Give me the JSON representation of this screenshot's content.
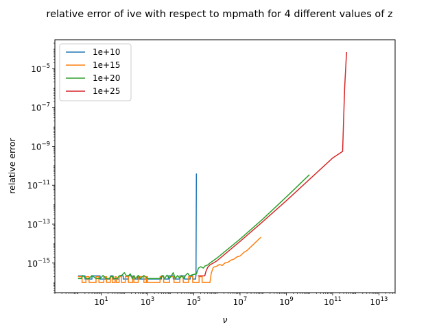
{
  "chart_data": {
    "type": "line",
    "title": "relative error of ive with respect to mpmath for 4 different values of z",
    "xlabel": "ν",
    "ylabel": "relative error",
    "xscale": "log",
    "yscale": "log",
    "xlim": [
      0.1,
      50000000000000.0
    ],
    "ylim": [
      3e-17,
      0.0003
    ],
    "grid": false,
    "legend_position": "top-left",
    "x_ticks": [
      {
        "base": "10",
        "exp": "1",
        "value": 10
      },
      {
        "base": "10",
        "exp": "3",
        "value": 1000
      },
      {
        "base": "10",
        "exp": "5",
        "value": 100000
      },
      {
        "base": "10",
        "exp": "7",
        "value": 10000000
      },
      {
        "base": "10",
        "exp": "9",
        "value": 1000000000
      },
      {
        "base": "10",
        "exp": "11",
        "value": 100000000000
      },
      {
        "base": "10",
        "exp": "13",
        "value": 10000000000000
      }
    ],
    "y_ticks": [
      {
        "base": "10",
        "exp": "−15",
        "value": 1e-15
      },
      {
        "base": "10",
        "exp": "−13",
        "value": 1e-13
      },
      {
        "base": "10",
        "exp": "−11",
        "value": 1e-11
      },
      {
        "base": "10",
        "exp": "−9",
        "value": 1e-09
      },
      {
        "base": "10",
        "exp": "−7",
        "value": 1e-07
      },
      {
        "base": "10",
        "exp": "−5",
        "value": 1e-05
      }
    ],
    "series": [
      {
        "name": "1e+10",
        "color": "#1f77b4",
        "points": [
          [
            1,
            2.2e-16
          ],
          [
            2,
            2.2e-16
          ],
          [
            2,
            1.5e-16
          ],
          [
            4,
            1.5e-16
          ],
          [
            4,
            2.2e-16
          ],
          [
            9,
            2.2e-16
          ],
          [
            9,
            1.5e-16
          ],
          [
            25,
            1.5e-16
          ],
          [
            25,
            2.2e-16
          ],
          [
            33,
            2.2e-16
          ],
          [
            33,
            1.5e-16
          ],
          [
            60,
            1.5e-16
          ],
          [
            60,
            2.2e-16
          ],
          [
            90,
            2.2e-16
          ],
          [
            90,
            1.5e-16
          ],
          [
            150,
            1.5e-16
          ],
          [
            150,
            2.2e-16
          ],
          [
            220,
            2.2e-16
          ],
          [
            220,
            1.5e-16
          ],
          [
            380,
            1.5e-16
          ],
          [
            380,
            2.2e-16
          ],
          [
            430,
            2.2e-16
          ],
          [
            430,
            1.5e-16
          ],
          [
            4000,
            1.5e-16
          ],
          [
            4000,
            2.2e-16
          ],
          [
            5000,
            2.2e-16
          ],
          [
            5000,
            1.5e-16
          ],
          [
            8000,
            1.5e-16
          ],
          [
            8000,
            2.2e-16
          ],
          [
            13000,
            2.2e-16
          ],
          [
            13000,
            1.5e-16
          ],
          [
            25000,
            1.5e-16
          ],
          [
            25000,
            2.2e-16
          ],
          [
            40000,
            2.2e-16
          ],
          [
            40000,
            1.5e-16
          ],
          [
            70000,
            1.5e-16
          ],
          [
            70000,
            2.2e-16
          ],
          [
            90000,
            2.2e-16
          ],
          [
            90000,
            1.5e-16
          ],
          [
            120000,
            1.5e-16
          ],
          [
            125000,
            2.5e-16
          ],
          [
            130000,
            4e-11
          ]
        ]
      },
      {
        "name": "1e+15",
        "color": "#ff7f0e",
        "points": [
          [
            1,
            2e-16
          ],
          [
            1.5,
            2e-16
          ],
          [
            1.5,
            1e-16
          ],
          [
            2.2,
            1e-16
          ],
          [
            2.2,
            2e-16
          ],
          [
            3,
            2e-16
          ],
          [
            3,
            1e-16
          ],
          [
            6,
            1e-16
          ],
          [
            6,
            2e-16
          ],
          [
            8,
            2e-16
          ],
          [
            8,
            1e-16
          ],
          [
            13,
            1e-16
          ],
          [
            13,
            2e-16
          ],
          [
            17,
            2e-16
          ],
          [
            17,
            1e-16
          ],
          [
            25,
            1e-16
          ],
          [
            25,
            2e-16
          ],
          [
            30,
            2e-16
          ],
          [
            30,
            1e-16
          ],
          [
            40,
            1e-16
          ],
          [
            40,
            2e-16
          ],
          [
            45,
            2e-16
          ],
          [
            45,
            1e-16
          ],
          [
            60,
            1e-16
          ],
          [
            60,
            2e-16
          ],
          [
            75,
            2e-16
          ],
          [
            75,
            1e-16
          ],
          [
            110,
            1e-16
          ],
          [
            110,
            2e-16
          ],
          [
            150,
            2e-16
          ],
          [
            150,
            1e-16
          ],
          [
            230,
            1e-16
          ],
          [
            230,
            2e-16
          ],
          [
            260,
            2e-16
          ],
          [
            260,
            1e-16
          ],
          [
            400,
            1e-16
          ],
          [
            400,
            2e-16
          ],
          [
            700,
            2e-16
          ],
          [
            700,
            1e-16
          ],
          [
            900,
            1e-16
          ],
          [
            900,
            2e-16
          ],
          [
            1000,
            2e-16
          ],
          [
            1000,
            1e-16
          ],
          [
            3500,
            1e-16
          ],
          [
            3500,
            2e-16
          ],
          [
            5000,
            2e-16
          ],
          [
            5000,
            1e-16
          ],
          [
            9000,
            1e-16
          ],
          [
            9000,
            2e-16
          ],
          [
            14000,
            2e-16
          ],
          [
            14000,
            1e-16
          ],
          [
            25000,
            1e-16
          ],
          [
            25000,
            2e-16
          ],
          [
            35000,
            2e-16
          ],
          [
            35000,
            1e-16
          ],
          [
            60000,
            1e-16
          ],
          [
            60000,
            2e-16
          ],
          [
            90000,
            2e-16
          ],
          [
            90000,
            1e-16
          ],
          [
            170000,
            1e-16
          ],
          [
            170000,
            2e-16
          ],
          [
            230000,
            2e-16
          ],
          [
            230000,
            1e-16
          ],
          [
            500000,
            1e-16
          ],
          [
            570000,
            3e-16
          ],
          [
            700000,
            6e-16
          ],
          [
            1000000,
            7e-16
          ],
          [
            1300000,
            8.5e-16
          ],
          [
            1700000,
            7.5e-16
          ],
          [
            2200000,
            1e-15
          ],
          [
            3000000,
            1.1e-15
          ],
          [
            4000000,
            1.4e-15
          ],
          [
            5500000,
            1.6e-15
          ],
          [
            7500000,
            2.1e-15
          ],
          [
            10000000,
            2.3e-15
          ],
          [
            15000000,
            3.6e-15
          ],
          [
            20000000,
            4.4e-15
          ],
          [
            30000000,
            7e-15
          ],
          [
            45000000,
            1.1e-14
          ],
          [
            65000000,
            1.7e-14
          ],
          [
            80000000,
            2.1e-14
          ]
        ]
      },
      {
        "name": "1e+20",
        "color": "#2ca02c",
        "points": [
          [
            1,
            1.6e-16
          ],
          [
            1.4,
            1.6e-16
          ],
          [
            1.6,
            2.3e-16
          ],
          [
            2.2,
            1.6e-16
          ],
          [
            3,
            1.6e-16
          ],
          [
            4,
            2.3e-16
          ],
          [
            6,
            1.6e-16
          ],
          [
            9,
            1.6e-16
          ],
          [
            12,
            2.3e-16
          ],
          [
            16,
            1.6e-16
          ],
          [
            22,
            1.6e-16
          ],
          [
            28,
            2.2e-16
          ],
          [
            36,
            1.6e-16
          ],
          [
            50,
            1.6e-16
          ],
          [
            60,
            2.2e-16
          ],
          [
            80,
            2.4e-16
          ],
          [
            100,
            3.2e-16
          ],
          [
            120,
            2.3e-16
          ],
          [
            150,
            2.2e-16
          ],
          [
            180,
            2.8e-16
          ],
          [
            220,
            1.6e-16
          ],
          [
            260,
            2.3e-16
          ],
          [
            300,
            1.6e-16
          ],
          [
            400,
            2.3e-16
          ],
          [
            500,
            1.6e-16
          ],
          [
            700,
            2.3e-16
          ],
          [
            1000,
            1.6e-16
          ],
          [
            3500,
            1.6e-16
          ],
          [
            4500,
            2.3e-16
          ],
          [
            5500,
            1.6e-16
          ],
          [
            7000,
            2.4e-16
          ],
          [
            9000,
            1.6e-16
          ],
          [
            11000,
            2.3e-16
          ],
          [
            13000,
            3.2e-16
          ],
          [
            16000,
            1.6e-16
          ],
          [
            20000,
            2.3e-16
          ],
          [
            25000,
            1.6e-16
          ],
          [
            30000,
            2.3e-16
          ],
          [
            37000,
            1.6e-16
          ],
          [
            45000,
            2.4e-16
          ],
          [
            55000,
            3e-16
          ],
          [
            65000,
            2.2e-16
          ],
          [
            80000,
            2.4e-16
          ],
          [
            100000,
            2.6e-16
          ],
          [
            130000,
            2.8e-16
          ],
          [
            160000,
            5.5e-16
          ],
          [
            200000,
            6.5e-16
          ],
          [
            260000,
            5.5e-16
          ],
          [
            300000,
            7e-16
          ],
          [
            400000,
            8e-16
          ],
          [
            500000,
            1e-15
          ],
          [
            1000000,
            1.8e-15
          ],
          [
            10000000,
            1.7e-14
          ],
          [
            100000000,
            1.9e-13
          ],
          [
            1000000000,
            2.5e-12
          ],
          [
            10000000000,
            3.5e-11
          ]
        ]
      },
      {
        "name": "1e+25",
        "color": "#d62728",
        "points": [
          [
            150000,
            2.2e-16
          ],
          [
            300000,
            2.2e-16
          ],
          [
            330000,
            3.5e-16
          ],
          [
            400000,
            6e-16
          ],
          [
            500000,
            8e-16
          ],
          [
            700000,
            1e-15
          ],
          [
            1000000,
            1.3e-15
          ],
          [
            10000000,
            1.3e-14
          ],
          [
            100000000,
            1.4e-13
          ],
          [
            1000000000,
            1.6e-12
          ],
          [
            10000000000,
            2e-11
          ],
          [
            100000000000,
            2.5e-10
          ],
          [
            270000000000,
            5.5e-10
          ],
          [
            330000000000,
            1e-06
          ],
          [
            400000000000,
            7e-05
          ]
        ]
      }
    ]
  }
}
